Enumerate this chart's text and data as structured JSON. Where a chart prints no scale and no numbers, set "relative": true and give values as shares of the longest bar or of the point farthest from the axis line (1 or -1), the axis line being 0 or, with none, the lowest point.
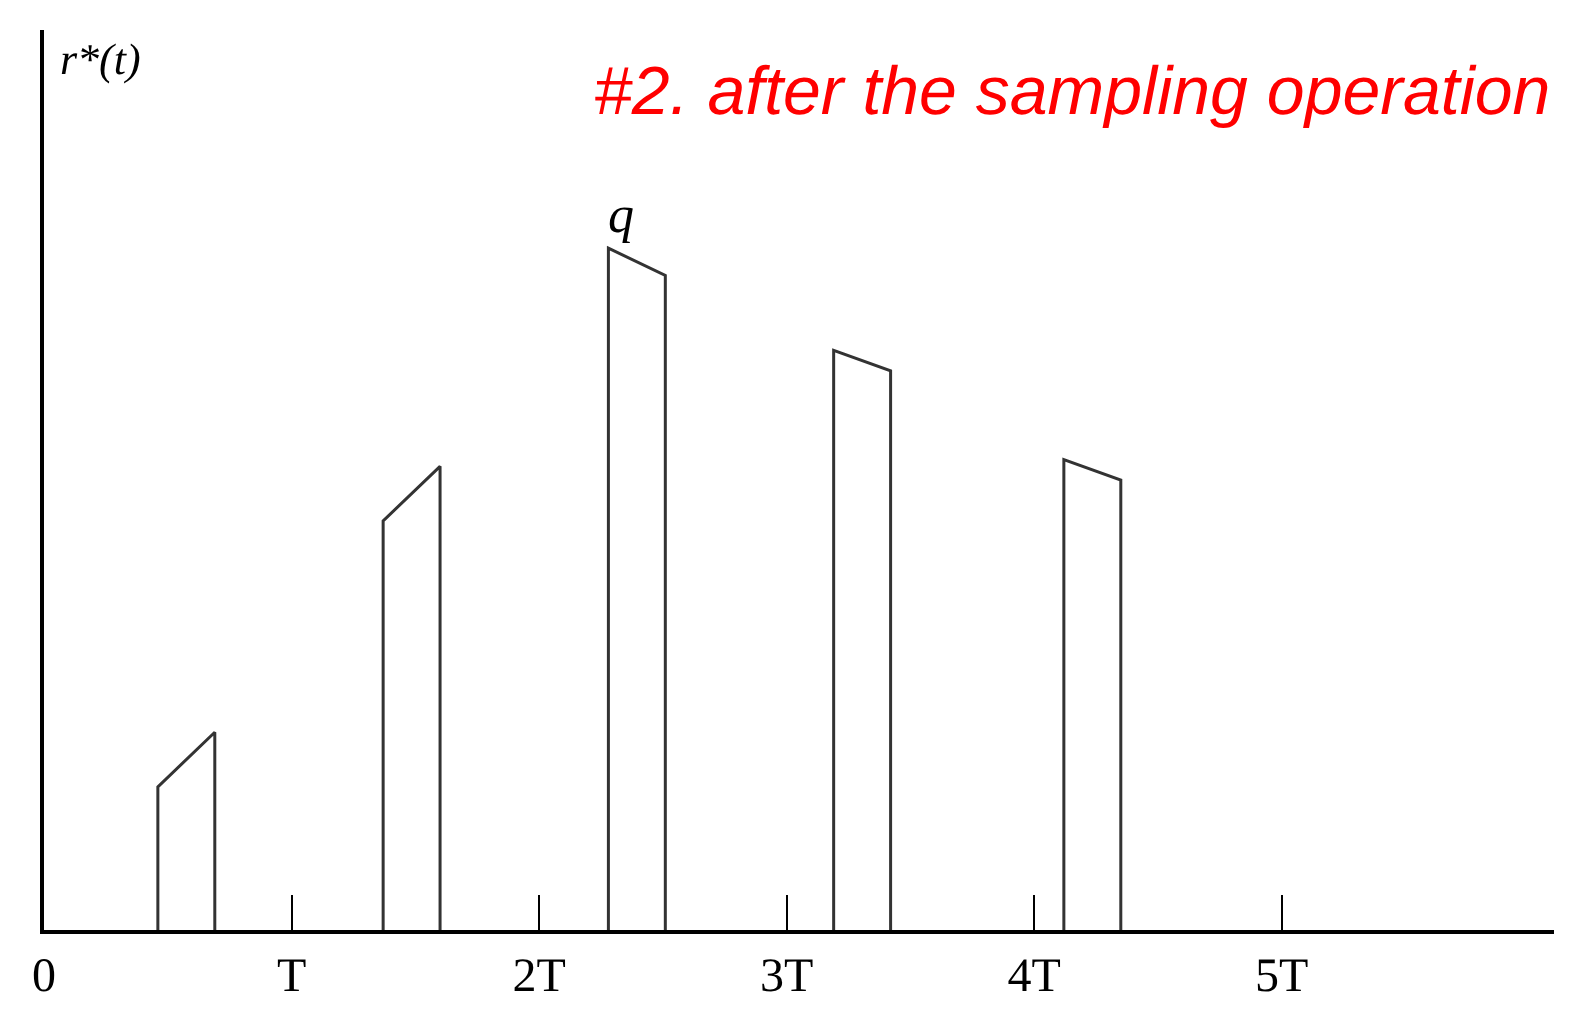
{
  "chart_data": {
    "type": "line",
    "title": "#2. after the sampling operation",
    "ylabel": "r*(t)",
    "relative": true,
    "xlim": [
      0,
      6.1
    ],
    "xticks": [
      0,
      {
        "value": 1,
        "label": "T"
      },
      {
        "value": 2,
        "label": "2T"
      },
      {
        "value": 3,
        "label": "3T"
      },
      {
        "value": 4,
        "label": "4T"
      },
      {
        "value": 5,
        "label": "5T"
      }
    ],
    "series": [
      {
        "color": "#333333",
        "x": [
          0.46,
          0.46,
          0.69,
          0.69,
          null,
          1.37,
          1.37,
          1.6,
          1.6,
          null,
          2.28,
          2.28,
          2.51,
          2.51,
          null,
          3.19,
          3.19,
          3.42,
          3.42,
          null,
          4.12,
          4.12,
          4.35,
          4.35
        ],
        "values": [
          0,
          0.21,
          0.29,
          0,
          null,
          0,
          0.6,
          0.68,
          0,
          null,
          0,
          1,
          0.96,
          0,
          null,
          0,
          0.85,
          0.82,
          0,
          null,
          0,
          0.69,
          0.66,
          0
        ]
      }
    ],
    "annotations": [
      {
        "text": "q",
        "x": 2.33,
        "y": 1
      }
    ],
    "marker": "none",
    "line_style": "solid"
  }
}
